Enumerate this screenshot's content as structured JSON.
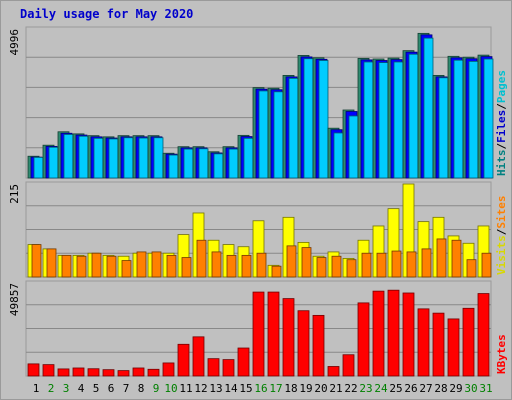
{
  "title": "Daily usage for May 2020",
  "chart_data": [
    {
      "type": "bar",
      "panel": "hits",
      "ymax_label": "4996",
      "ylim": [
        0,
        4996
      ],
      "categories": [
        "1",
        "2",
        "3",
        "4",
        "5",
        "6",
        "7",
        "8",
        "9",
        "10",
        "11",
        "12",
        "13",
        "14",
        "15",
        "16",
        "17",
        "18",
        "19",
        "20",
        "21",
        "22",
        "23",
        "24",
        "25",
        "26",
        "27",
        "28",
        "29",
        "30",
        "31"
      ],
      "legend": [
        {
          "text": "Hits",
          "color": "#008080"
        },
        {
          "text": "/",
          "color": "#000000"
        },
        {
          "text": "Files",
          "color": "#0000cc"
        },
        {
          "text": "/",
          "color": "#000000"
        },
        {
          "text": "Pages",
          "color": "#00c0d0"
        }
      ],
      "series": [
        {
          "name": "Hits",
          "color": "#2e8b70",
          "values": [
            730,
            1100,
            1550,
            1480,
            1420,
            1380,
            1420,
            1420,
            1420,
            830,
            1050,
            1050,
            880,
            1050,
            1430,
            3030,
            3010,
            3440,
            4110,
            4030,
            1670,
            2280,
            4010,
            3990,
            4020,
            4270,
            4850,
            3440,
            4080,
            4050,
            4120
          ]
        },
        {
          "name": "Files",
          "color": "#0000ff",
          "values": [
            700,
            1060,
            1500,
            1440,
            1380,
            1340,
            1380,
            1380,
            1380,
            800,
            1010,
            1010,
            840,
            1010,
            1390,
            2980,
            2960,
            3390,
            4060,
            3980,
            1620,
            2230,
            3960,
            3940,
            3970,
            4220,
            4800,
            3390,
            4030,
            4000,
            4070
          ]
        },
        {
          "name": "Pages",
          "color": "#00ccff",
          "values": [
            690,
            1030,
            1460,
            1400,
            1330,
            1310,
            1350,
            1340,
            1350,
            770,
            970,
            980,
            810,
            970,
            1330,
            2920,
            2890,
            3340,
            4000,
            3940,
            1510,
            2080,
            3890,
            3870,
            3890,
            4150,
            4690,
            3360,
            3950,
            3910,
            3990
          ]
        }
      ]
    },
    {
      "type": "bar",
      "panel": "visits",
      "ymax_label": "215",
      "ylim": [
        0,
        215
      ],
      "categories": [
        "1",
        "2",
        "3",
        "4",
        "5",
        "6",
        "7",
        "8",
        "9",
        "10",
        "11",
        "12",
        "13",
        "14",
        "15",
        "16",
        "17",
        "18",
        "19",
        "20",
        "21",
        "22",
        "23",
        "24",
        "25",
        "26",
        "27",
        "28",
        "29",
        "30",
        "31"
      ],
      "legend": [
        {
          "text": "Visits",
          "color": "#d8d800"
        },
        {
          "text": "/",
          "color": "#000000"
        },
        {
          "text": "Sites",
          "color": "#ff8000"
        }
      ],
      "series": [
        {
          "name": "Visits",
          "color": "#ffff00",
          "values": [
            75,
            65,
            50,
            50,
            55,
            50,
            48,
            55,
            55,
            55,
            98,
            148,
            85,
            75,
            70,
            130,
            27,
            138,
            80,
            48,
            58,
            43,
            85,
            118,
            158,
            215,
            128,
            138,
            95,
            78,
            118
          ]
        },
        {
          "name": "Sites",
          "color": "#ff8000",
          "values": [
            75,
            65,
            50,
            48,
            55,
            48,
            38,
            58,
            58,
            50,
            45,
            85,
            58,
            50,
            50,
            55,
            25,
            72,
            68,
            45,
            48,
            40,
            55,
            55,
            60,
            58,
            65,
            88,
            85,
            40,
            55
          ]
        }
      ]
    },
    {
      "type": "bar",
      "panel": "kbytes",
      "ymax_label": "49857",
      "ylim": [
        0,
        49857
      ],
      "categories": [
        "1",
        "2",
        "3",
        "4",
        "5",
        "6",
        "7",
        "8",
        "9",
        "10",
        "11",
        "12",
        "13",
        "14",
        "15",
        "16",
        "17",
        "18",
        "19",
        "20",
        "21",
        "22",
        "23",
        "24",
        "25",
        "26",
        "27",
        "28",
        "29",
        "30",
        "31"
      ],
      "legend": [
        {
          "text": "KBytes",
          "color": "#ff0000"
        }
      ],
      "series": [
        {
          "name": "KBytes",
          "color": "#ff0000",
          "values": [
            6500,
            6100,
            3800,
            4300,
            3900,
            3400,
            2900,
            4300,
            3600,
            7000,
            17000,
            21000,
            9300,
            8800,
            15000,
            45000,
            45000,
            41500,
            35000,
            32500,
            5100,
            11400,
            39200,
            45500,
            46000,
            44500,
            36000,
            33700,
            30600,
            36300,
            44200
          ]
        }
      ]
    }
  ],
  "weekend_days": [
    "2",
    "3",
    "9",
    "10",
    "16",
    "17",
    "23",
    "24",
    "30",
    "31"
  ]
}
